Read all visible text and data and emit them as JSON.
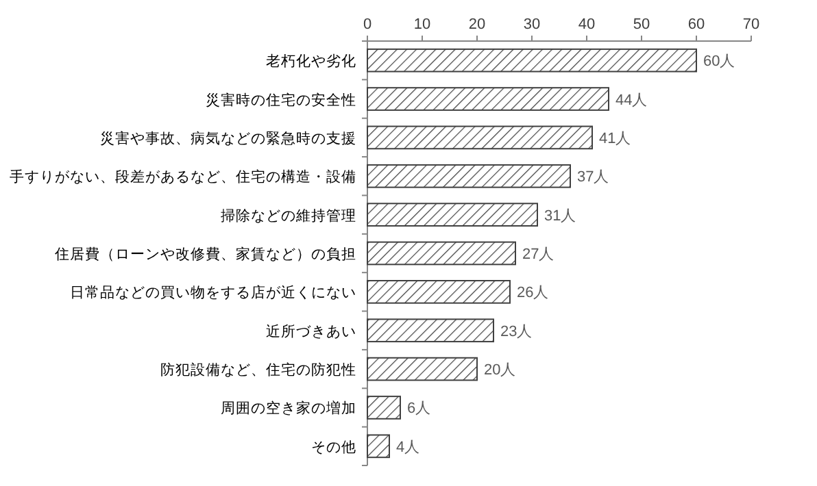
{
  "chart_data": {
    "type": "bar",
    "orientation": "horizontal",
    "categories": [
      "老朽化や劣化",
      "災害時の住宅の安全性",
      "災害や事故、病気などの緊急時の支援",
      "手すりがない、段差があるなど、住宅の構造・設備",
      "掃除などの維持管理",
      "住居費（ローンや改修費、家賃など）の負担",
      "日常品などの買い物をする店が近くにない",
      "近所づきあい",
      "防犯設備など、住宅の防犯性",
      "周囲の空き家の増加",
      "その他"
    ],
    "values": [
      60,
      44,
      41,
      37,
      31,
      27,
      26,
      23,
      20,
      6,
      4
    ],
    "value_labels": [
      "60人",
      "44人",
      "41人",
      "37人",
      "31人",
      "27人",
      "26人",
      "23人",
      "20人",
      "6人",
      "4人"
    ],
    "color": "#404040",
    "xlim": [
      0,
      70
    ],
    "xticks": [
      0,
      10,
      20,
      30,
      40,
      50,
      60,
      70
    ],
    "grid": false
  }
}
